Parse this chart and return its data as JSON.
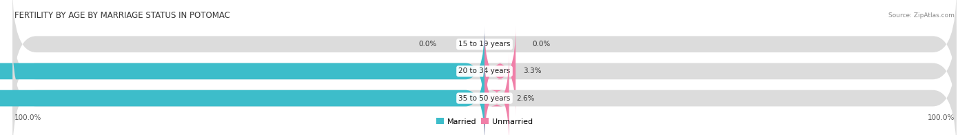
{
  "title": "FERTILITY BY AGE BY MARRIAGE STATUS IN POTOMAC",
  "source": "Source: ZipAtlas.com",
  "rows": [
    {
      "label": "15 to 19 years",
      "married": 0.0,
      "unmarried": 0.0
    },
    {
      "label": "20 to 34 years",
      "married": 96.7,
      "unmarried": 3.3
    },
    {
      "label": "35 to 50 years",
      "married": 97.4,
      "unmarried": 2.6
    }
  ],
  "bottom_left_label": "100.0%",
  "bottom_right_label": "100.0%",
  "married_color": "#3dbdca",
  "unmarried_color": "#f07fa8",
  "row_bg_colors": [
    "#f0f0f0",
    "#e4e4e4",
    "#f0f0f0"
  ],
  "bar_bg_color": "#dcdcdc",
  "bar_height": 0.62,
  "title_fontsize": 8.5,
  "label_fontsize": 7.5,
  "tick_fontsize": 7.5
}
